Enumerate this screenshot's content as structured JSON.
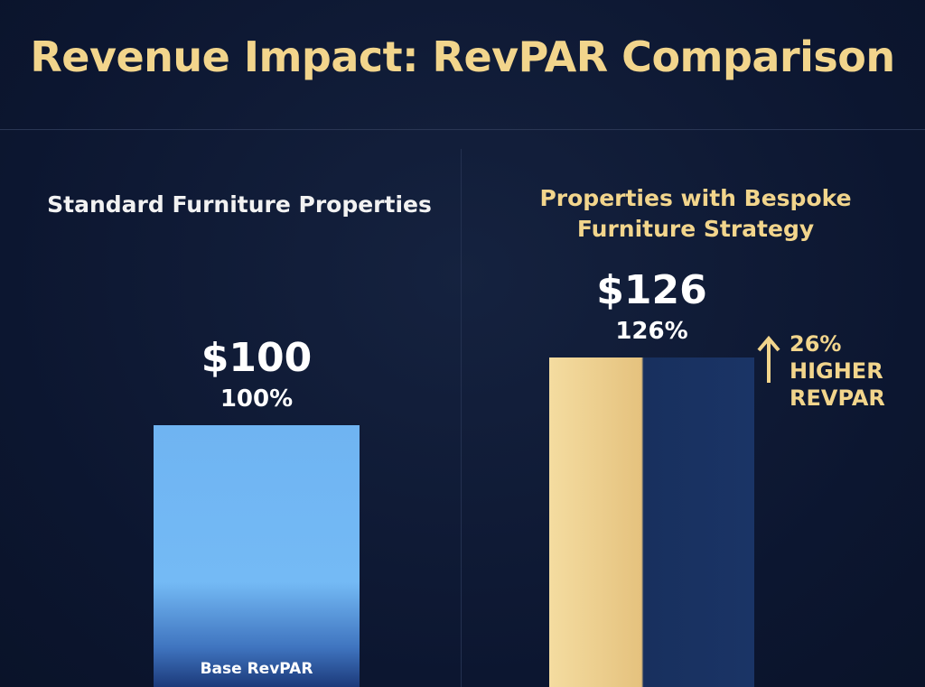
{
  "title": "Revenue Impact: RevPAR Comparison",
  "panels": [
    {
      "heading": "Standard Furniture Properties",
      "value": 100,
      "value_label": "$100",
      "percent_label": "100%",
      "bar_label": "Base RevPAR"
    },
    {
      "heading": "Properties with Bespoke Furniture Strategy",
      "value": 126,
      "value_label": "$126",
      "percent_label": "126%",
      "callout": [
        "26%",
        "HIGHER",
        "REVPAR"
      ]
    }
  ]
}
